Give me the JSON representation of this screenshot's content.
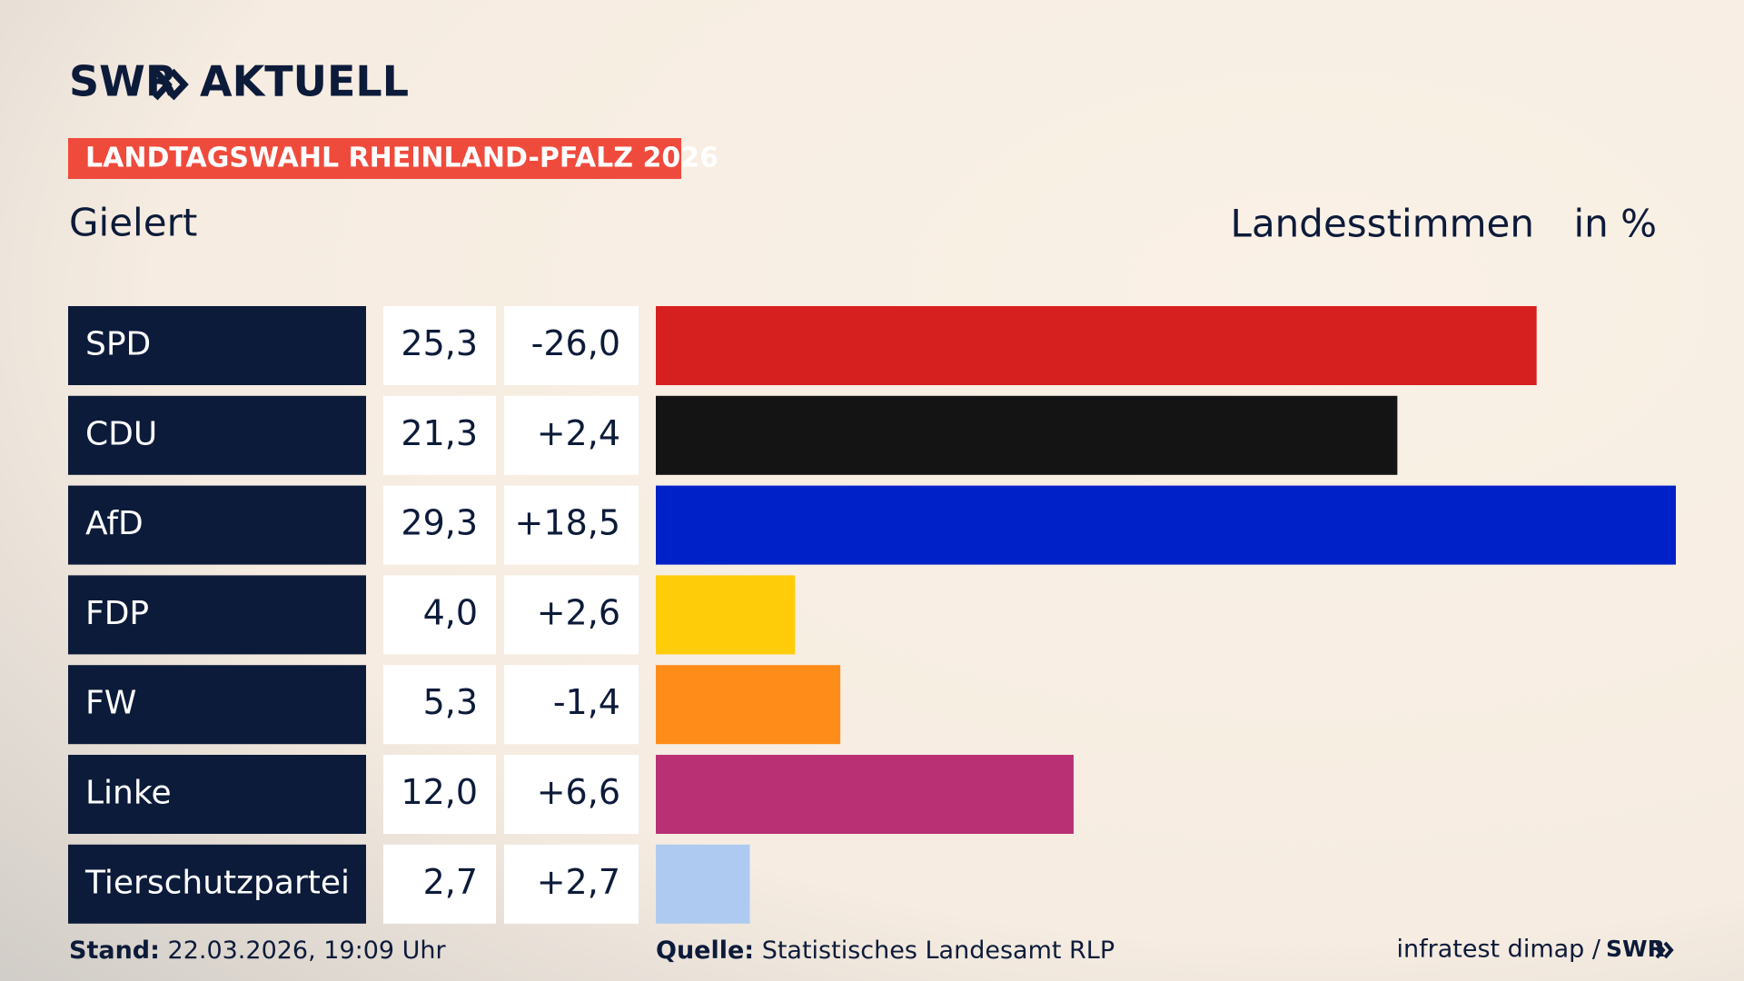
{
  "brand": "SWR",
  "brand_suffix": "AKTUELL",
  "chart_data": {
    "type": "bar",
    "badge": "LANDTAGSWAHL RHEINLAND-PFALZ 2026",
    "subtitle": "Gielert",
    "measure": "Landesstimmen",
    "unit": "in %",
    "categories": [
      "SPD",
      "CDU",
      "AfD",
      "FDP",
      "FW",
      "Linke",
      "Tierschutzpartei"
    ],
    "values": [
      25.3,
      21.3,
      29.3,
      4.0,
      5.3,
      12.0,
      2.7
    ],
    "value_labels": [
      "25,3",
      "21,3",
      "29,3",
      "4,0",
      "5,3",
      "12,0",
      "2,7"
    ],
    "changes": [
      -26.0,
      2.4,
      18.5,
      2.6,
      -1.4,
      6.6,
      2.7
    ],
    "change_labels": [
      "-26,0",
      "+2,4",
      "+18,5",
      "+2,6",
      "-1,4",
      "+6,6",
      "+2,7"
    ],
    "colors": [
      "#d62020",
      "#141414",
      "#0021c8",
      "#ffcc0a",
      "#ff8c19",
      "#b93074",
      "#aecaf0"
    ]
  },
  "footer": {
    "date_label": "Stand:",
    "date": "22.03.2026, 19:09 Uhr",
    "source_label": "Quelle:",
    "source": "Statistisches Landesamt RLP",
    "institute": "infratest dimap /",
    "brand": "SWR"
  }
}
